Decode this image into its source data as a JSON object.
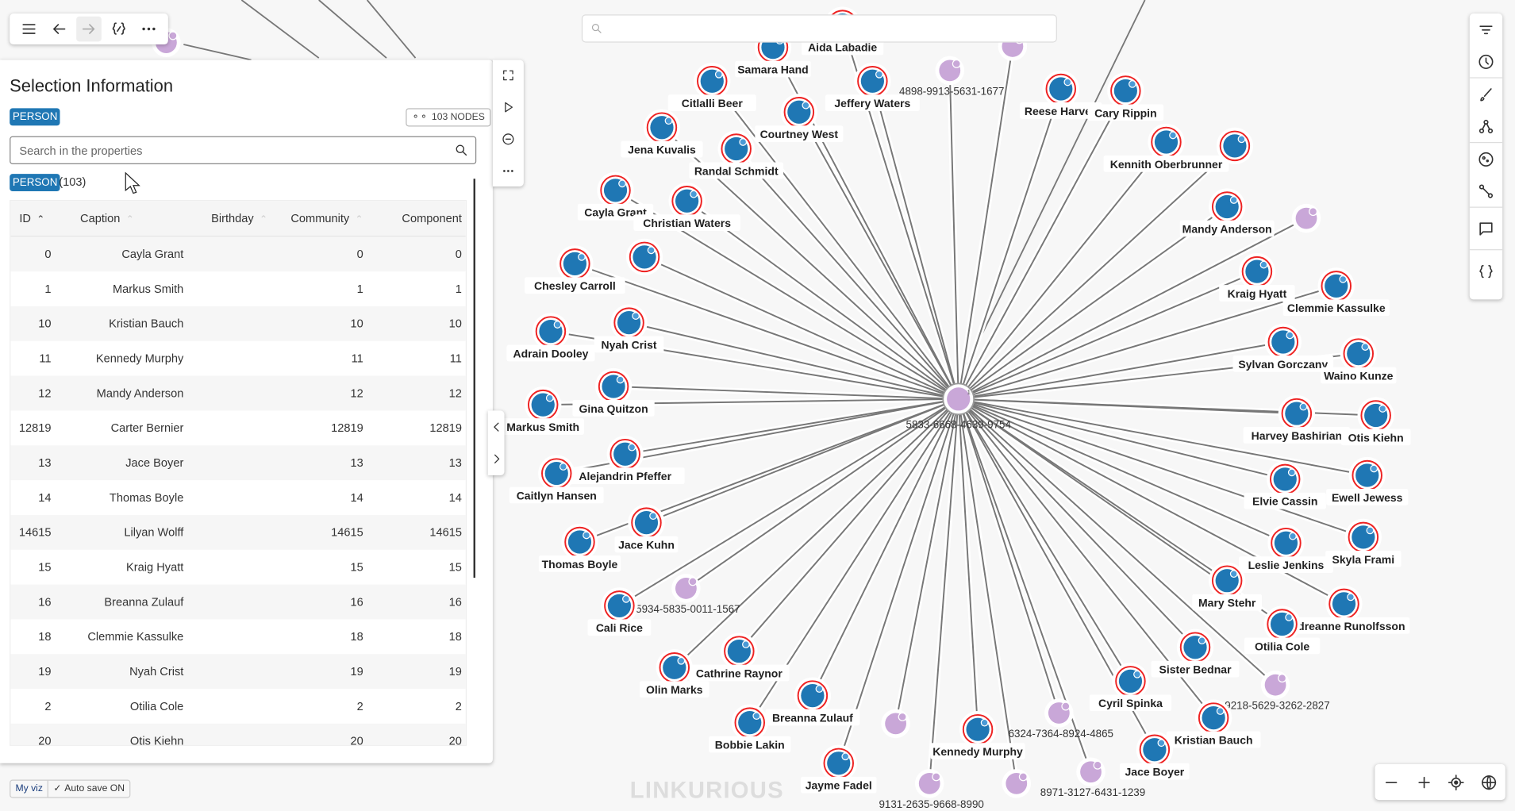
{
  "toolbar": {
    "menu": "menu-icon",
    "back": "arrow-left-icon",
    "forward": "arrow-right-icon",
    "code": "code-edit-icon",
    "more": "more-icon"
  },
  "panel": {
    "title": "Selection Information",
    "category": "PERSON",
    "nodes_count": "103 NODES",
    "search_placeholder": "Search in the properties",
    "group_tag": "PERSON",
    "group_count": "(103)",
    "columns": [
      "ID",
      "Caption",
      "Birthday",
      "Community",
      "Component"
    ],
    "rows": [
      [
        "0",
        "Cayla Grant",
        "",
        "0",
        "0"
      ],
      [
        "1",
        "Markus Smith",
        "",
        "1",
        "1"
      ],
      [
        "10",
        "Kristian Bauch",
        "",
        "10",
        "10"
      ],
      [
        "11",
        "Kennedy Murphy",
        "",
        "11",
        "11"
      ],
      [
        "12",
        "Mandy Anderson",
        "",
        "12",
        "12"
      ],
      [
        "12819",
        "Carter Bernier",
        "",
        "12819",
        "12819"
      ],
      [
        "13",
        "Jace Boyer",
        "",
        "13",
        "13"
      ],
      [
        "14",
        "Thomas Boyle",
        "",
        "14",
        "14"
      ],
      [
        "14615",
        "Lilyan Wolff",
        "",
        "14615",
        "14615"
      ],
      [
        "15",
        "Kraig Hyatt",
        "",
        "15",
        "15"
      ],
      [
        "16",
        "Breanna Zulauf",
        "",
        "16",
        "16"
      ],
      [
        "18",
        "Clemmie Kassulke",
        "",
        "18",
        "18"
      ],
      [
        "19",
        "Nyah Crist",
        "",
        "19",
        "19"
      ],
      [
        "2",
        "Otilia Cole",
        "",
        "2",
        "2"
      ],
      [
        "20",
        "Otis Kiehn",
        "",
        "20",
        "20"
      ]
    ]
  },
  "graph": {
    "center_label": "5833-6668-4639-9754",
    "center_badge": "1",
    "person_color": "#1f77b4",
    "phone_color": "#c9a7d8",
    "persons": [
      "Aida Labadie",
      "Samara Hand",
      "Citlalli Beer",
      "Jeffery Waters",
      "Courtney West",
      "Jena Kuvalis",
      "Randal Schmidt",
      "Reese Harvey",
      "Cary Rippin",
      "Kennith Oberbrunner",
      "",
      "Mandy Anderson",
      "Cayla Grant",
      "Christian Waters",
      "Chesley Carroll",
      "",
      "Kraig Hyatt",
      "Clemmie Kassulke",
      "Adrain Dooley",
      "Nyah Crist",
      "Sylvan Gorczany",
      "Waino Kunze",
      "Gina Quitzon",
      "Markus Smith",
      "Harvey Bashirian",
      "Otis Kiehn",
      "Alejandrin Pfeffer",
      "Caitlyn Hansen",
      "Elvie Cassin",
      "Ewell Jewess",
      "Jace Kuhn",
      "Thomas Boyle",
      "Leslie Jenkins",
      "Skyla Frami",
      "Mary Stehr",
      "Audreanne Runolfsson",
      "Cali Rice",
      "Otilia Cole",
      "Sister Bednar",
      "Cathrine Raynor",
      "Olin Marks",
      "Cyril Spinka",
      "Kristian Bauch",
      "Breanna Zulauf",
      "Bobbie Lakin",
      "Kennedy Murphy",
      "Jace Boyer",
      "Jayme Fadel"
    ],
    "phones": [
      "",
      "4898-9913-5631-1677",
      "",
      "",
      "5934-5835-0011-1567",
      "9218-5629-3262-2827",
      "",
      "6324-7364-8924-4865",
      "9131-2635-9668-8990",
      "",
      "8971-3127-6431-1239"
    ]
  },
  "bottom": {
    "my_viz": "My viz",
    "autosave": "Auto save ON",
    "logo": "LINKURIOUS"
  }
}
